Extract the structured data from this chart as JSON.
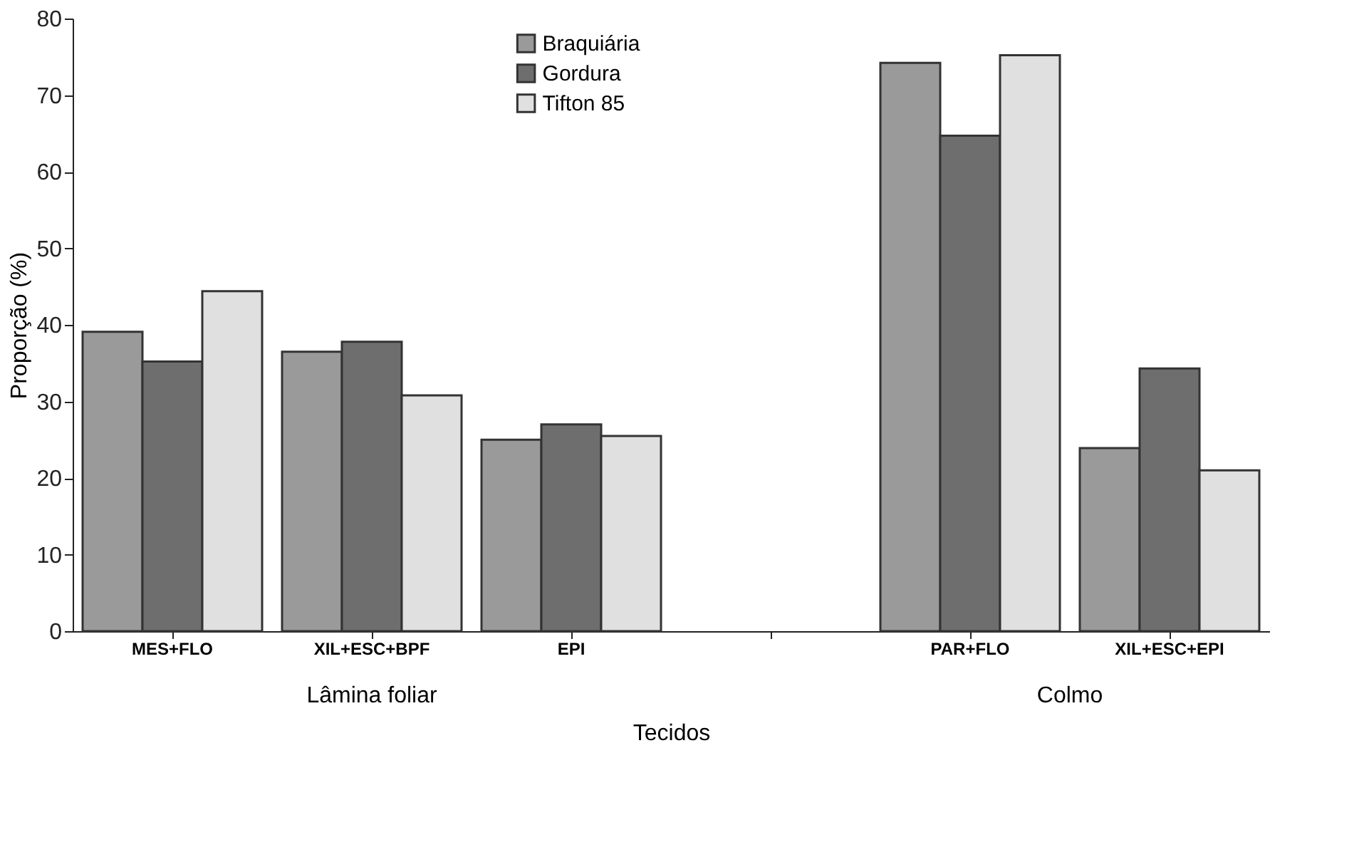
{
  "chart_data": {
    "type": "bar",
    "xlabel": "Tecidos",
    "ylabel": "Proporção (%)",
    "categories": [
      "MES+FLO",
      "XIL+ESC+BPF",
      "EPI",
      null,
      "PAR+FLO",
      "XIL+ESC+EPI"
    ],
    "series": [
      {
        "name": "Braquiária",
        "color": "#9a9a9a",
        "values": [
          39.1,
          36.5,
          25.0,
          null,
          74.2,
          23.9
        ]
      },
      {
        "name": "Gordura",
        "color": "#6e6e6e",
        "values": [
          35.2,
          37.8,
          27.0,
          null,
          64.7,
          34.3
        ]
      },
      {
        "name": "Tifton 85",
        "color": "#e0e0e0",
        "values": [
          44.4,
          30.8,
          25.5,
          null,
          75.2,
          21.0
        ]
      }
    ],
    "ylim": [
      0,
      80
    ],
    "yticks": [
      0,
      10,
      20,
      30,
      40,
      50,
      60,
      70,
      80
    ],
    "annotations": [
      "Lâmina foliar",
      "Colmo"
    ],
    "legend": "top",
    "grid": false
  }
}
